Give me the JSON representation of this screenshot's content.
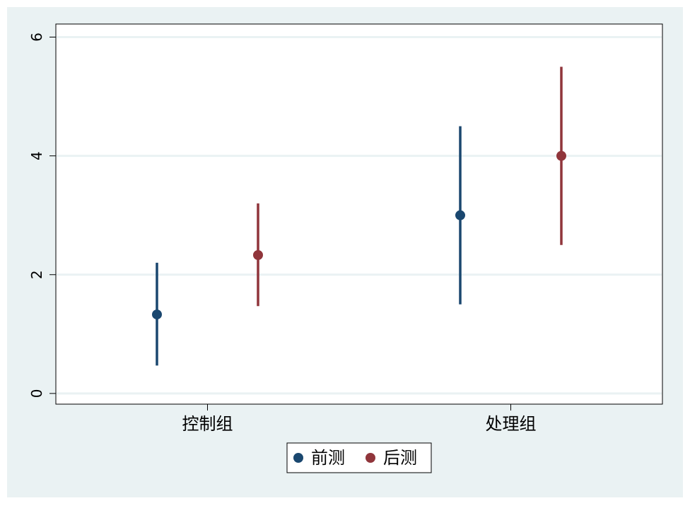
{
  "chart_data": {
    "type": "scatter",
    "categories": [
      "控制组",
      "处理组"
    ],
    "series": [
      {
        "name": "前测",
        "color": "#1a476f",
        "values": [
          1.33,
          3.0
        ],
        "lower": [
          0.47,
          1.5
        ],
        "upper": [
          2.2,
          4.5
        ]
      },
      {
        "name": "后测",
        "color": "#90353b",
        "values": [
          2.33,
          4.0
        ],
        "lower": [
          1.47,
          2.5
        ],
        "upper": [
          3.2,
          5.5
        ]
      }
    ],
    "yticks": [
      0,
      2,
      4,
      6
    ],
    "ylim": [
      -0.18,
      6.22
    ],
    "title": "",
    "xlabel": "",
    "ylabel": "",
    "grid": true,
    "legend_position": "bottom-center",
    "colors": {
      "outer_background": "#eaf2f3",
      "plot_background": "#ffffff",
      "gridline": "#eaf2f3"
    }
  }
}
